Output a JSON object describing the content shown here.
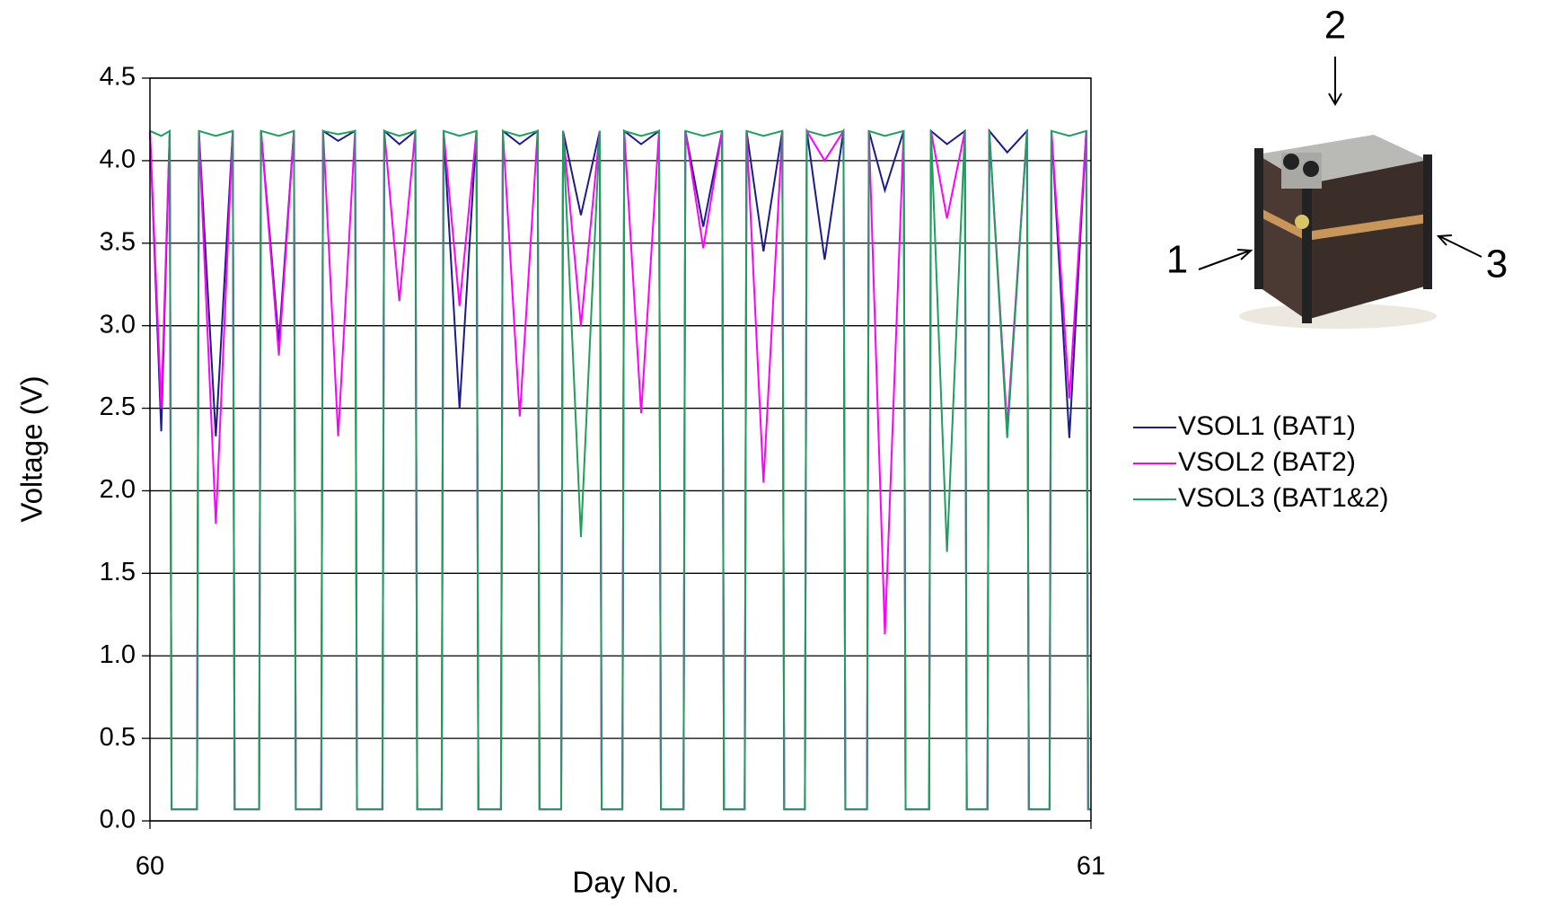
{
  "chart_data": {
    "type": "line",
    "x_label": "Day No.",
    "y_label": "Voltage (V)",
    "xlim": [
      60,
      61
    ],
    "xticks": [
      60,
      61
    ],
    "ylim": [
      0,
      4.5
    ],
    "yticks": [
      {
        "value": 0,
        "label": "0.0"
      },
      0.5,
      {
        "value": 1,
        "label": "1.0"
      },
      1.5,
      {
        "value": 2,
        "label": "2.0"
      },
      2.5,
      {
        "value": 3,
        "label": "3.0"
      },
      3.5,
      {
        "value": 4,
        "label": "4.0"
      },
      4.5
    ],
    "grid": true,
    "legend": "right",
    "annotations": [
      "1",
      "2",
      "3"
    ],
    "x": [
      60.0,
      60.012,
      60.021,
      60.023,
      60.05,
      60.052,
      60.07,
      60.088,
      60.09,
      60.116,
      60.118,
      60.137,
      60.153,
      60.155,
      60.182,
      60.184,
      60.2,
      60.218,
      60.22,
      60.247,
      60.249,
      60.265,
      60.282,
      60.284,
      60.31,
      60.312,
      60.329,
      60.347,
      60.349,
      60.373,
      60.375,
      60.393,
      60.412,
      60.414,
      60.437,
      60.439,
      60.458,
      60.478,
      60.48,
      60.502,
      60.504,
      60.522,
      60.541,
      60.543,
      60.567,
      60.569,
      60.588,
      60.608,
      60.61,
      60.632,
      60.634,
      60.652,
      60.672,
      60.674,
      60.696,
      60.698,
      60.717,
      60.737,
      60.739,
      60.762,
      60.764,
      60.781,
      60.801,
      60.803,
      60.828,
      60.83,
      60.847,
      60.866,
      60.868,
      60.89,
      60.892,
      60.911,
      60.932,
      60.934,
      60.956,
      60.958,
      60.977,
      60.995,
      60.997,
      61.0
    ],
    "series": [
      {
        "name": "VSOL1 (BAT1)",
        "color": "#1c1c8c",
        "values": [
          4.18,
          2.36,
          4.18,
          0.07,
          0.07,
          4.18,
          2.33,
          4.18,
          0.07,
          0.07,
          4.18,
          2.9,
          4.18,
          0.07,
          0.07,
          4.18,
          4.12,
          4.18,
          0.07,
          0.07,
          4.18,
          4.1,
          4.18,
          0.07,
          0.07,
          4.18,
          2.5,
          4.18,
          0.07,
          0.07,
          4.18,
          4.1,
          4.18,
          0.07,
          0.07,
          4.18,
          3.67,
          4.18,
          0.07,
          0.07,
          4.18,
          4.1,
          4.18,
          0.07,
          0.07,
          4.18,
          3.6,
          4.18,
          0.07,
          0.07,
          4.18,
          3.45,
          4.18,
          0.07,
          0.07,
          4.18,
          3.4,
          4.18,
          0.07,
          0.07,
          4.18,
          3.82,
          4.18,
          0.07,
          0.07,
          4.18,
          4.1,
          4.18,
          0.07,
          0.07,
          4.18,
          4.05,
          4.18,
          0.07,
          0.07,
          4.18,
          2.32,
          4.18,
          0.07,
          0.07
        ]
      },
      {
        "name": "VSOL2 (BAT2)",
        "color": "#ff00ff",
        "values": [
          4.18,
          2.5,
          4.18,
          0.07,
          0.07,
          4.18,
          1.8,
          4.18,
          0.07,
          0.07,
          4.18,
          2.82,
          4.18,
          0.07,
          0.07,
          4.18,
          2.33,
          4.18,
          0.07,
          0.07,
          4.18,
          3.15,
          4.18,
          0.07,
          0.07,
          4.18,
          3.12,
          4.18,
          0.07,
          0.07,
          4.18,
          2.45,
          4.18,
          0.07,
          0.07,
          4.18,
          3.0,
          4.18,
          0.07,
          0.07,
          4.18,
          2.47,
          4.18,
          0.07,
          0.07,
          4.18,
          3.47,
          4.18,
          0.07,
          0.07,
          4.18,
          2.05,
          4.18,
          0.07,
          0.07,
          4.18,
          4.0,
          4.18,
          0.07,
          0.07,
          4.18,
          1.13,
          4.18,
          0.07,
          0.07,
          4.18,
          3.65,
          4.18,
          0.07,
          0.07,
          4.18,
          2.38,
          4.18,
          0.07,
          0.07,
          4.18,
          2.56,
          4.18,
          0.07,
          0.07
        ]
      },
      {
        "name": "VSOL3 (BAT1&2)",
        "color": "#1f9e5c",
        "values": [
          4.18,
          4.15,
          4.18,
          0.07,
          0.07,
          4.18,
          4.15,
          4.18,
          0.07,
          0.07,
          4.18,
          4.15,
          4.18,
          0.07,
          0.07,
          4.18,
          4.16,
          4.18,
          0.07,
          0.07,
          4.18,
          4.15,
          4.18,
          0.07,
          0.07,
          4.18,
          4.15,
          4.18,
          0.07,
          0.07,
          4.18,
          4.15,
          4.18,
          0.07,
          0.07,
          4.18,
          1.72,
          4.18,
          0.07,
          0.07,
          4.18,
          4.15,
          4.18,
          0.07,
          0.07,
          4.18,
          4.15,
          4.18,
          0.07,
          0.07,
          4.18,
          4.15,
          4.18,
          0.07,
          0.07,
          4.18,
          4.15,
          4.18,
          0.07,
          0.07,
          4.18,
          4.15,
          4.18,
          0.07,
          0.07,
          4.18,
          1.63,
          4.18,
          0.07,
          0.07,
          4.18,
          2.32,
          4.18,
          0.07,
          0.07,
          4.18,
          4.15,
          4.18,
          0.07,
          0.07
        ]
      }
    ]
  }
}
